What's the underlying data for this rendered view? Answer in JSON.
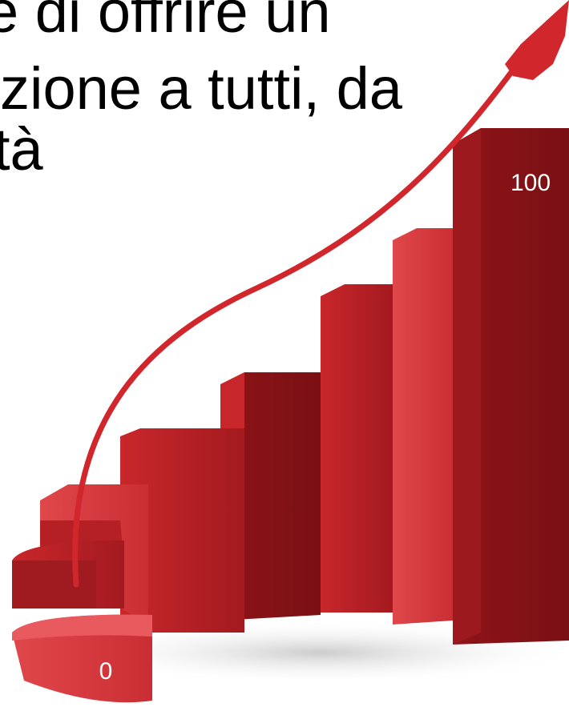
{
  "text": {
    "lines": [
      "e di offrire un",
      "zione a tutti, da",
      "tà"
    ]
  },
  "illustration": {
    "labels": [
      0,
      100
    ]
  }
}
